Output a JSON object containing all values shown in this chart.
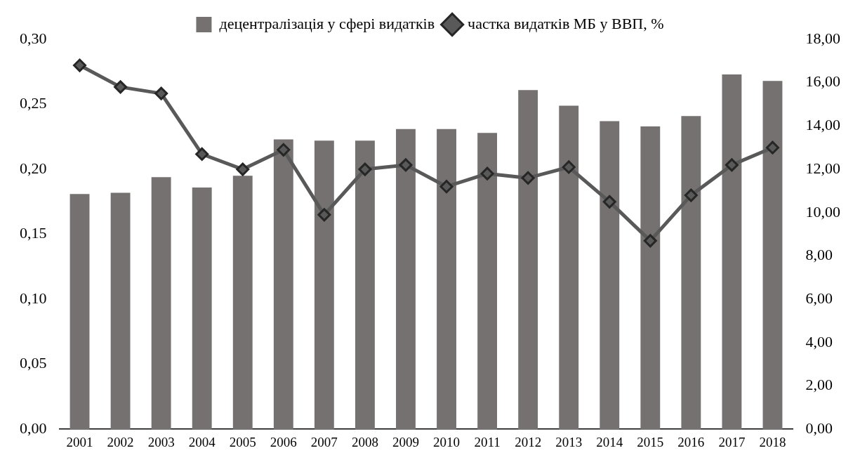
{
  "chart_data": {
    "type": "bar",
    "categories": [
      "2001",
      "2002",
      "2003",
      "2004",
      "2005",
      "2006",
      "2007",
      "2008",
      "2009",
      "2010",
      "2011",
      "2012",
      "2013",
      "2014",
      "2015",
      "2016",
      "2017",
      "2018"
    ],
    "series": [
      {
        "name": "децентралізація у сфері видатків",
        "color": "#767171",
        "values": [
          0.181,
          0.182,
          0.194,
          0.186,
          0.195,
          0.223,
          0.222,
          0.222,
          0.231,
          0.231,
          0.228,
          0.261,
          0.249,
          0.237,
          0.233,
          0.241,
          0.273,
          0.268
        ]
      },
      {
        "name": "частка видатків МБ у ВВП, %",
        "type": "line",
        "axis": "y2",
        "color": "#595959",
        "marker": "diamond",
        "values": [
          16.8,
          15.8,
          15.5,
          12.7,
          12.0,
          12.9,
          9.9,
          12.0,
          12.2,
          11.2,
          11.8,
          11.6,
          12.1,
          10.5,
          8.7,
          10.8,
          12.2,
          13.0
        ]
      }
    ],
    "ylim": [
      0,
      0.3
    ],
    "yticks": [
      {
        "value": 0,
        "label": "0,00"
      },
      {
        "value": 0.05,
        "label": "0,05"
      },
      {
        "value": 0.1,
        "label": "0,10"
      },
      {
        "value": 0.15,
        "label": "0,15"
      },
      {
        "value": 0.2,
        "label": "0,20"
      },
      {
        "value": 0.25,
        "label": "0,25"
      },
      {
        "value": 0.3,
        "label": "0,30"
      }
    ],
    "y2lim": [
      0,
      18
    ],
    "y2ticks": [
      {
        "value": 0,
        "label": "0,00"
      },
      {
        "value": 2,
        "label": "2,00"
      },
      {
        "value": 4,
        "label": "4,00"
      },
      {
        "value": 6,
        "label": "6,00"
      },
      {
        "value": 8,
        "label": "8,00"
      },
      {
        "value": 10,
        "label": "10,00"
      },
      {
        "value": 12,
        "label": "12,00"
      },
      {
        "value": 14,
        "label": "14,00"
      },
      {
        "value": 16,
        "label": "16,00"
      },
      {
        "value": 18,
        "label": "18,00"
      }
    ],
    "grid": false,
    "legend": "top"
  }
}
